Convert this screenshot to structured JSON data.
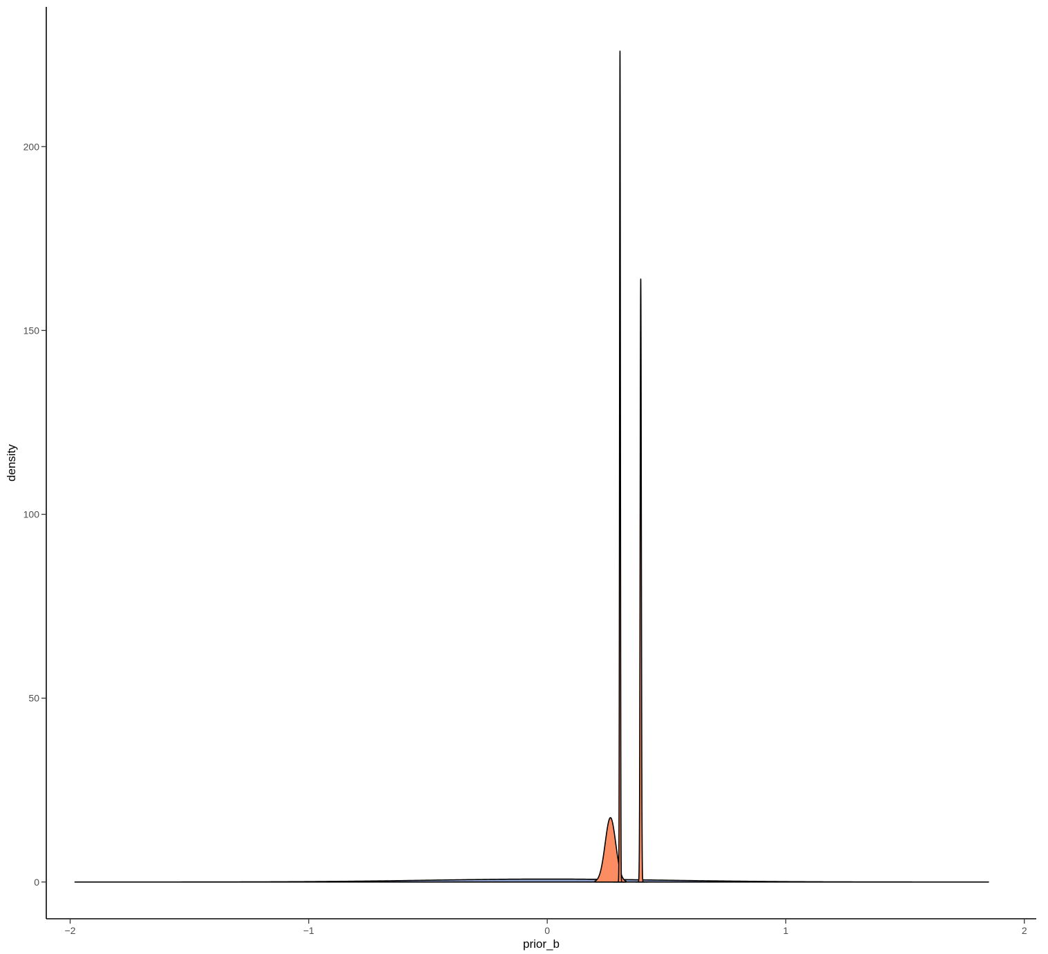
{
  "chart_data": {
    "type": "area",
    "xlabel": "prior_b",
    "ylabel": "density",
    "xlim": [
      -2.1,
      2.05
    ],
    "ylim": [
      -10,
      238
    ],
    "x_ticks": [
      -2,
      -1,
      0,
      1,
      2
    ],
    "y_ticks": [
      0,
      50,
      100,
      150,
      200
    ],
    "x_tick_labels": [
      "−2",
      "−1",
      "0",
      "1",
      "2"
    ],
    "y_tick_labels": [
      "0",
      "50",
      "100",
      "150",
      "200"
    ],
    "grid": false,
    "legend": "none",
    "fill_colors": {
      "prior": "#8DA0CB",
      "posterior": "#FC8D62"
    },
    "series": [
      {
        "kind": "prior",
        "shape": "normal",
        "x_range": [
          -1.98,
          1.85
        ],
        "mean": 0.0,
        "sd": 0.5,
        "peak": 0.8
      },
      {
        "kind": "posterior",
        "shape": "normal",
        "x_range": [
          0.2,
          0.33
        ],
        "mean": 0.265,
        "sd": 0.022,
        "peak": 17.5
      },
      {
        "kind": "posterior",
        "shape": "normal",
        "x_range": [
          0.28,
          0.33
        ],
        "mean": 0.305,
        "sd": 0.0018,
        "peak": 226
      },
      {
        "kind": "posterior",
        "shape": "normal",
        "x_range": [
          0.37,
          0.42
        ],
        "mean": 0.392,
        "sd": 0.0025,
        "peak": 164
      }
    ]
  }
}
